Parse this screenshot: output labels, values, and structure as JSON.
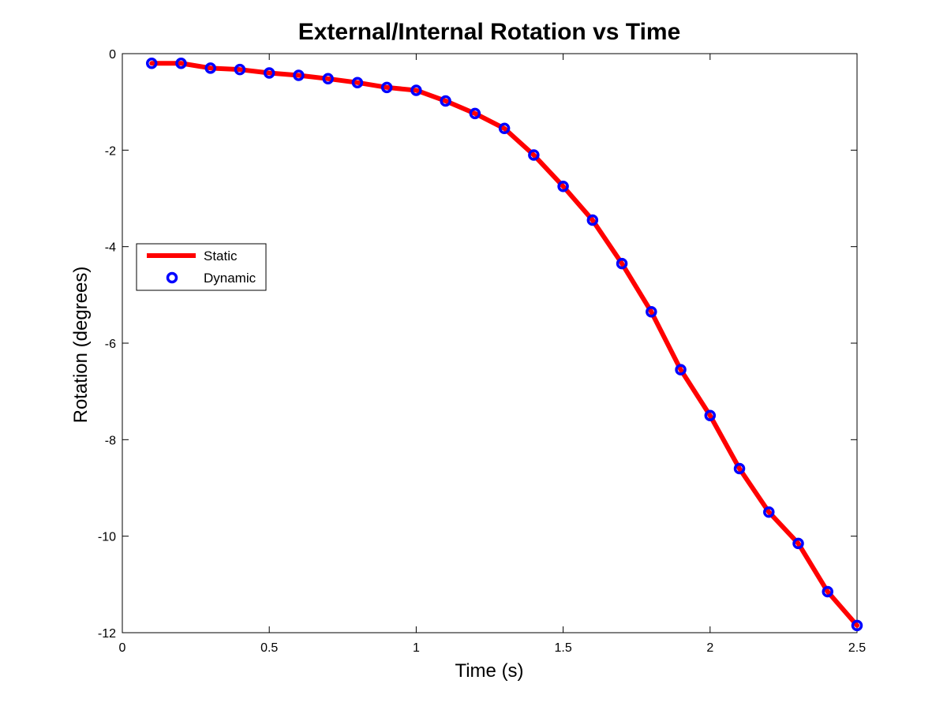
{
  "chart_data": {
    "type": "line",
    "title": "External/Internal Rotation vs Time",
    "xlabel": "Time (s)",
    "ylabel": "Rotation (degrees)",
    "xlim": [
      0,
      2.5
    ],
    "ylim": [
      -12,
      0
    ],
    "xticks": [
      0,
      0.5,
      1,
      1.5,
      2,
      2.5
    ],
    "xtick_labels": [
      "0",
      "0.5",
      "1",
      "1.5",
      "2",
      "2.5"
    ],
    "yticks": [
      0,
      -2,
      -4,
      -6,
      -8,
      -10,
      -12
    ],
    "ytick_labels": [
      "0",
      "-2",
      "-4",
      "-6",
      "-8",
      "-10",
      "-12"
    ],
    "grid": false,
    "legend_position": "middle-left",
    "x": [
      0.1,
      0.2,
      0.3,
      0.4,
      0.5,
      0.6,
      0.7,
      0.8,
      0.9,
      1.0,
      1.1,
      1.2,
      1.3,
      1.4,
      1.5,
      1.6,
      1.7,
      1.8,
      1.9,
      2.0,
      2.1,
      2.2,
      2.3,
      2.4,
      2.5
    ],
    "series": [
      {
        "name": "Static",
        "style": "line",
        "color": "#ff0000",
        "values": [
          -0.2,
          -0.2,
          -0.3,
          -0.33,
          -0.4,
          -0.45,
          -0.52,
          -0.6,
          -0.7,
          -0.76,
          -0.98,
          -1.24,
          -1.55,
          -2.1,
          -2.75,
          -3.45,
          -4.35,
          -5.35,
          -6.55,
          -7.5,
          -8.6,
          -9.5,
          -10.15,
          -11.15,
          -11.85
        ]
      },
      {
        "name": "Dynamic",
        "style": "marker",
        "color": "#0000ff",
        "values": [
          -0.2,
          -0.2,
          -0.3,
          -0.33,
          -0.4,
          -0.45,
          -0.52,
          -0.6,
          -0.7,
          -0.76,
          -0.98,
          -1.24,
          -1.55,
          -2.1,
          -2.75,
          -3.45,
          -4.35,
          -5.35,
          -6.55,
          -7.5,
          -8.6,
          -9.5,
          -10.15,
          -11.15,
          -11.85
        ]
      }
    ]
  }
}
